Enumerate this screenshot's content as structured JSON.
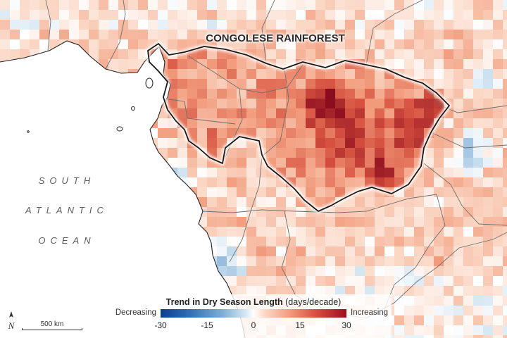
{
  "map": {
    "region_label": "CONGOLESE RAINFOREST",
    "ocean_label_lines": [
      "SOUTH",
      "ATLANTIC",
      "OCEAN"
    ],
    "scale_bar_label": "500 km",
    "north_arrow_label": "N",
    "icons": [
      "north-arrow-icon"
    ]
  },
  "legend": {
    "title_bold": "Trend in Dry Season Length",
    "title_units": " (days/decade)",
    "low_label": "Decreasing",
    "high_label": "Increasing",
    "ticks": [
      "-30",
      "-15",
      "0",
      "15",
      "30"
    ],
    "tick_values": [
      -30,
      -15,
      0,
      15,
      30
    ],
    "range": [
      -30,
      30
    ],
    "colors": {
      "strong_decrease": "#0b3f8f",
      "neutral": "#ffffff",
      "strong_increase": "#9e0d22"
    }
  },
  "colors": {
    "land_base": "#f8e2d8",
    "ocean": "#ffffff",
    "rainforest_outline": "#1a1a1a",
    "border_lines": "#6f6f6f"
  }
}
